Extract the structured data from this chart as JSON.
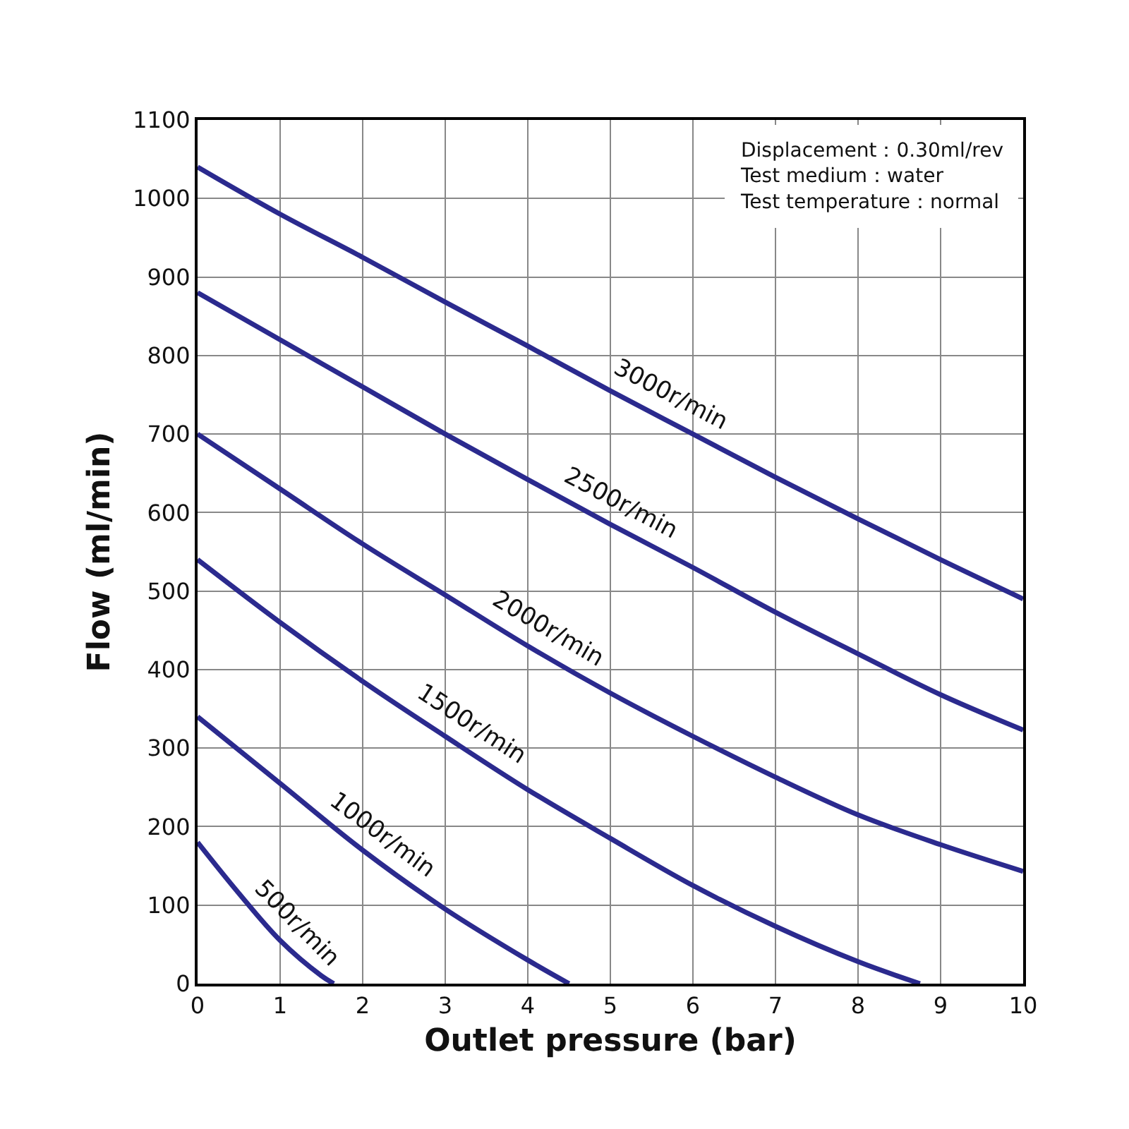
{
  "chart_data": {
    "type": "line",
    "xlabel": "Outlet pressure (bar)",
    "ylabel": "Flow (ml/min)",
    "xlim": [
      0,
      10
    ],
    "ylim": [
      0,
      1100
    ],
    "xticks": [
      0,
      1,
      2,
      3,
      4,
      5,
      6,
      7,
      8,
      9,
      10
    ],
    "yticks": [
      0,
      100,
      200,
      300,
      400,
      500,
      600,
      700,
      800,
      900,
      1000,
      1100
    ],
    "grid": true,
    "legend": false,
    "marker": "none",
    "line_style": "solid",
    "annotations": [
      "Displacement：0.30ml/rev\nTest medium：water\nTest temperature：normal"
    ],
    "series": [
      {
        "name": "3000r/min",
        "color": "#2b2a8e",
        "x": [
          0,
          1,
          2,
          3,
          4,
          5,
          6,
          7,
          8,
          9,
          10
        ],
        "values": [
          1040,
          980,
          925,
          868,
          812,
          755,
          700,
          645,
          592,
          540,
          490
        ]
      },
      {
        "name": "2500r/min",
        "color": "#2b2a8e",
        "x": [
          0,
          1,
          2,
          3,
          4,
          5,
          6,
          7,
          8,
          9,
          10
        ],
        "values": [
          880,
          820,
          760,
          700,
          642,
          585,
          530,
          473,
          420,
          368,
          323
        ]
      },
      {
        "name": "2000r/min",
        "color": "#2b2a8e",
        "x": [
          0,
          1,
          2,
          3,
          4,
          5,
          6,
          7,
          8,
          9,
          10
        ],
        "values": [
          700,
          630,
          560,
          495,
          430,
          370,
          315,
          263,
          215,
          177,
          143
        ]
      },
      {
        "name": "1500r/min",
        "color": "#2b2a8e",
        "x": [
          0,
          1,
          2,
          3,
          4,
          5,
          6,
          7,
          8,
          8.75
        ],
        "values": [
          540,
          460,
          385,
          315,
          247,
          185,
          125,
          73,
          28,
          0
        ]
      },
      {
        "name": "1000r/min",
        "color": "#2b2a8e",
        "x": [
          0,
          1,
          2,
          3,
          4,
          4.5
        ],
        "values": [
          340,
          255,
          170,
          95,
          30,
          0
        ]
      },
      {
        "name": "500r/min",
        "color": "#2b2a8e",
        "x": [
          0,
          0.5,
          1,
          1.5,
          1.65
        ],
        "values": [
          180,
          115,
          55,
          10,
          0
        ]
      }
    ]
  }
}
